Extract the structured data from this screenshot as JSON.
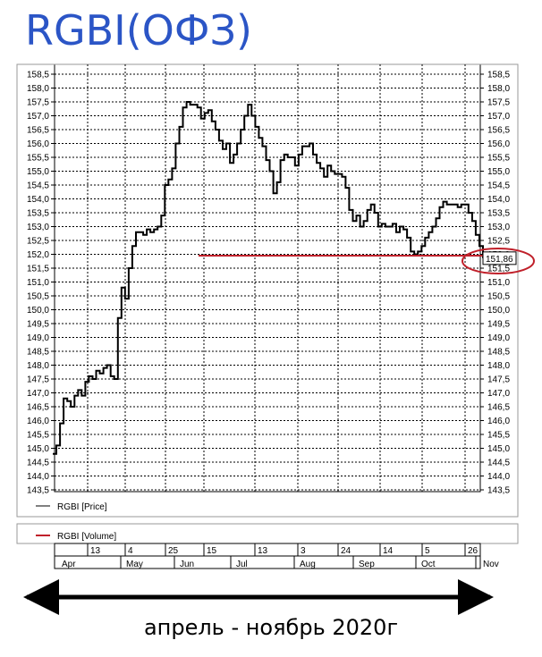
{
  "title": "RGBI(ОФЗ)",
  "caption": "апрель - ноябрь 2020г",
  "chart_data": {
    "type": "line",
    "ylim": [
      143.5,
      158.5
    ],
    "y_ticks": [
      "143,5",
      "144,0",
      "144,5",
      "145,0",
      "145,5",
      "146,0",
      "146,5",
      "147,0",
      "147,5",
      "148,0",
      "148,5",
      "149,0",
      "149,5",
      "150,0",
      "150,5",
      "151,0",
      "151,5",
      "152,0",
      "152,5",
      "153,0",
      "153,5",
      "154,0",
      "154,5",
      "155,0",
      "155,5",
      "156,0",
      "156,5",
      "157,0",
      "157,5",
      "158,0",
      "158,5"
    ],
    "y_values": [
      143.5,
      144.0,
      144.5,
      145.0,
      145.5,
      146.0,
      146.5,
      147.0,
      147.5,
      148.0,
      148.5,
      149.0,
      149.5,
      150.0,
      150.5,
      151.0,
      151.5,
      152.0,
      152.5,
      153.0,
      153.5,
      154.0,
      154.5,
      155.0,
      155.5,
      156.0,
      156.5,
      157.0,
      157.5,
      158.0,
      158.5
    ],
    "last_value_label": "151,86",
    "last_value": 151.86,
    "support_level": 151.95,
    "support_color": "#c0202a",
    "circle_color": "#c0202a",
    "series": [
      {
        "name": "RGBI [Price]",
        "color": "#000000",
        "values": [
          144.8,
          145.1,
          145.9,
          146.8,
          146.7,
          146.5,
          146.9,
          147.1,
          146.9,
          147.4,
          147.6,
          147.5,
          147.8,
          147.7,
          147.9,
          148.0,
          147.6,
          147.5,
          149.7,
          150.8,
          150.4,
          151.5,
          152.3,
          152.8,
          152.8,
          152.7,
          152.9,
          152.8,
          152.9,
          153.0,
          153.4,
          154.5,
          154.7,
          155.1,
          156.0,
          156.6,
          157.3,
          157.5,
          157.4,
          157.4,
          157.3,
          156.9,
          157.1,
          157.2,
          156.8,
          156.5,
          156.1,
          155.8,
          156.0,
          155.3,
          155.6,
          156.0,
          156.5,
          157.0,
          157.4,
          157.0,
          156.6,
          156.2,
          155.9,
          155.4,
          155.0,
          154.2,
          154.6,
          155.4,
          155.6,
          155.5,
          155.5,
          155.2,
          155.6,
          155.9,
          155.9,
          156.0,
          155.6,
          155.3,
          155.1,
          154.8,
          155.2,
          155.0,
          154.9,
          154.9,
          154.8,
          154.4,
          153.6,
          153.2,
          153.4,
          153.0,
          153.2,
          153.6,
          153.8,
          153.5,
          153.0,
          153.1,
          153.0,
          153.0,
          153.1,
          152.8,
          153.0,
          152.9,
          152.6,
          152.1,
          152.0,
          152.1,
          152.3,
          152.6,
          152.8,
          153.0,
          153.3,
          153.7,
          153.9,
          153.8,
          153.8,
          153.8,
          153.7,
          153.8,
          153.8,
          153.5,
          153.2,
          152.7,
          152.3,
          151.86
        ]
      },
      {
        "name": "RGBI [Volume]",
        "color": "#c0202a",
        "values": []
      }
    ],
    "x_day_ticks": [
      "13",
      "4",
      "25",
      "15",
      "13",
      "3",
      "24",
      "14",
      "5",
      "26"
    ],
    "x_month_labels": [
      "Apr",
      "May",
      "Jun",
      "Jul",
      "Aug",
      "Sep",
      "Oct",
      "Nov"
    ],
    "grid": true
  }
}
